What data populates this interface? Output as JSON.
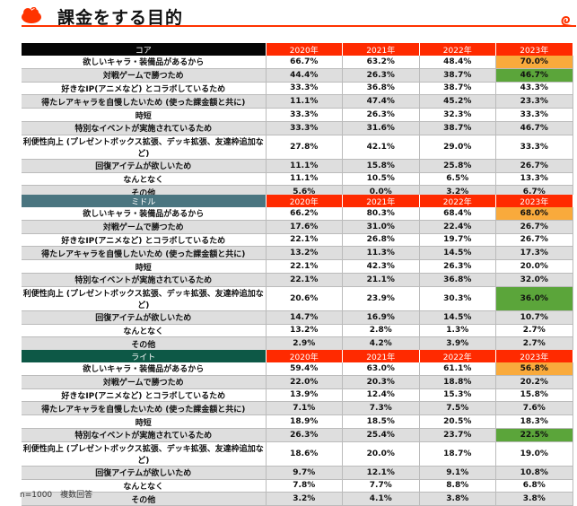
{
  "title": "課金をする目的",
  "colors": {
    "accent": "#ff3300",
    "year_header": "#ff2a00",
    "highlight_max": "#f9aa3c",
    "highlight_growth": "#5ba53a",
    "row_alt": "#dedede"
  },
  "years": [
    "2020年",
    "2021年",
    "2022年",
    "2023年"
  ],
  "row_labels": [
    "欲しいキャラ・装備品があるから",
    "対戦ゲームで勝つため",
    "好きなIP(アニメなど) とコラボしているため",
    "得たレアキャラを自慢したいため (使った課金額と共に)",
    "時短",
    "特別なイベントが実施されているため",
    "利便性向上 (プレゼントボックス拡張、デッキ拡張、友達枠追加など)",
    "回復アイテムが欲しいため",
    "なんとなく",
    "その他"
  ],
  "sections": [
    {
      "name": "コア",
      "header_color": "#050505",
      "values": [
        [
          "66.7%",
          "63.2%",
          "48.4%",
          "70.0%"
        ],
        [
          "44.4%",
          "26.3%",
          "38.7%",
          "46.7%"
        ],
        [
          "33.3%",
          "36.8%",
          "38.7%",
          "43.3%"
        ],
        [
          "11.1%",
          "47.4%",
          "45.2%",
          "23.3%"
        ],
        [
          "33.3%",
          "26.3%",
          "32.3%",
          "33.3%"
        ],
        [
          "33.3%",
          "31.6%",
          "38.7%",
          "46.7%"
        ],
        [
          "27.8%",
          "42.1%",
          "29.0%",
          "33.3%"
        ],
        [
          "11.1%",
          "15.8%",
          "25.8%",
          "26.7%"
        ],
        [
          "11.1%",
          "10.5%",
          "6.5%",
          "13.3%"
        ],
        [
          "5.6%",
          "0.0%",
          "3.2%",
          "6.7%"
        ]
      ],
      "highlight_orange_row": 0,
      "highlight_green_row": 1
    },
    {
      "name": "ミドル",
      "header_color": "#4a7580",
      "values": [
        [
          "66.2%",
          "80.3%",
          "68.4%",
          "68.0%"
        ],
        [
          "17.6%",
          "31.0%",
          "22.4%",
          "26.7%"
        ],
        [
          "22.1%",
          "26.8%",
          "19.7%",
          "26.7%"
        ],
        [
          "13.2%",
          "11.3%",
          "14.5%",
          "17.3%"
        ],
        [
          "22.1%",
          "42.3%",
          "26.3%",
          "20.0%"
        ],
        [
          "22.1%",
          "21.1%",
          "36.8%",
          "32.0%"
        ],
        [
          "20.6%",
          "23.9%",
          "30.3%",
          "36.0%"
        ],
        [
          "14.7%",
          "16.9%",
          "14.5%",
          "10.7%"
        ],
        [
          "13.2%",
          "2.8%",
          "1.3%",
          "2.7%"
        ],
        [
          "2.9%",
          "4.2%",
          "3.9%",
          "2.7%"
        ]
      ],
      "highlight_orange_row": 0,
      "highlight_green_row": 6
    },
    {
      "name": "ライト",
      "header_color": "#0d5846",
      "values": [
        [
          "59.4%",
          "63.0%",
          "61.1%",
          "56.8%"
        ],
        [
          "22.0%",
          "20.3%",
          "18.8%",
          "20.2%"
        ],
        [
          "13.9%",
          "12.4%",
          "15.3%",
          "15.8%"
        ],
        [
          "7.1%",
          "7.3%",
          "7.5%",
          "7.6%"
        ],
        [
          "18.9%",
          "18.5%",
          "20.5%",
          "18.3%"
        ],
        [
          "26.3%",
          "25.4%",
          "23.7%",
          "22.5%"
        ],
        [
          "18.6%",
          "20.0%",
          "18.7%",
          "19.0%"
        ],
        [
          "9.7%",
          "12.1%",
          "9.1%",
          "10.8%"
        ],
        [
          "7.8%",
          "7.7%",
          "8.8%",
          "6.8%"
        ],
        [
          "3.2%",
          "4.1%",
          "3.8%",
          "3.8%"
        ]
      ],
      "highlight_orange_row": 0,
      "highlight_green_row": 5
    }
  ],
  "footnote": "n=1000　複数回答"
}
